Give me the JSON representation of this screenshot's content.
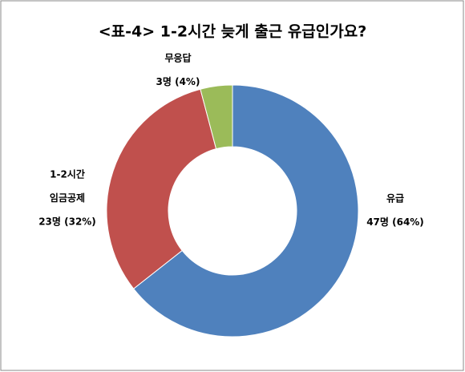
{
  "chart_data": {
    "type": "donut",
    "title": "<표-4> 1-2시간 늦게 출근 유급인가요?",
    "categories": [
      [
        "유급"
      ],
      [
        "1-2시간",
        "임금공제"
      ],
      [
        "무응답"
      ]
    ],
    "values": [
      47,
      23,
      3
    ],
    "value_labels": [
      "47명 (64%)",
      "23명 (32%)",
      "3명 (4%)"
    ],
    "colors": [
      "#4f81bd",
      "#c0504d",
      "#9bbb59"
    ]
  }
}
